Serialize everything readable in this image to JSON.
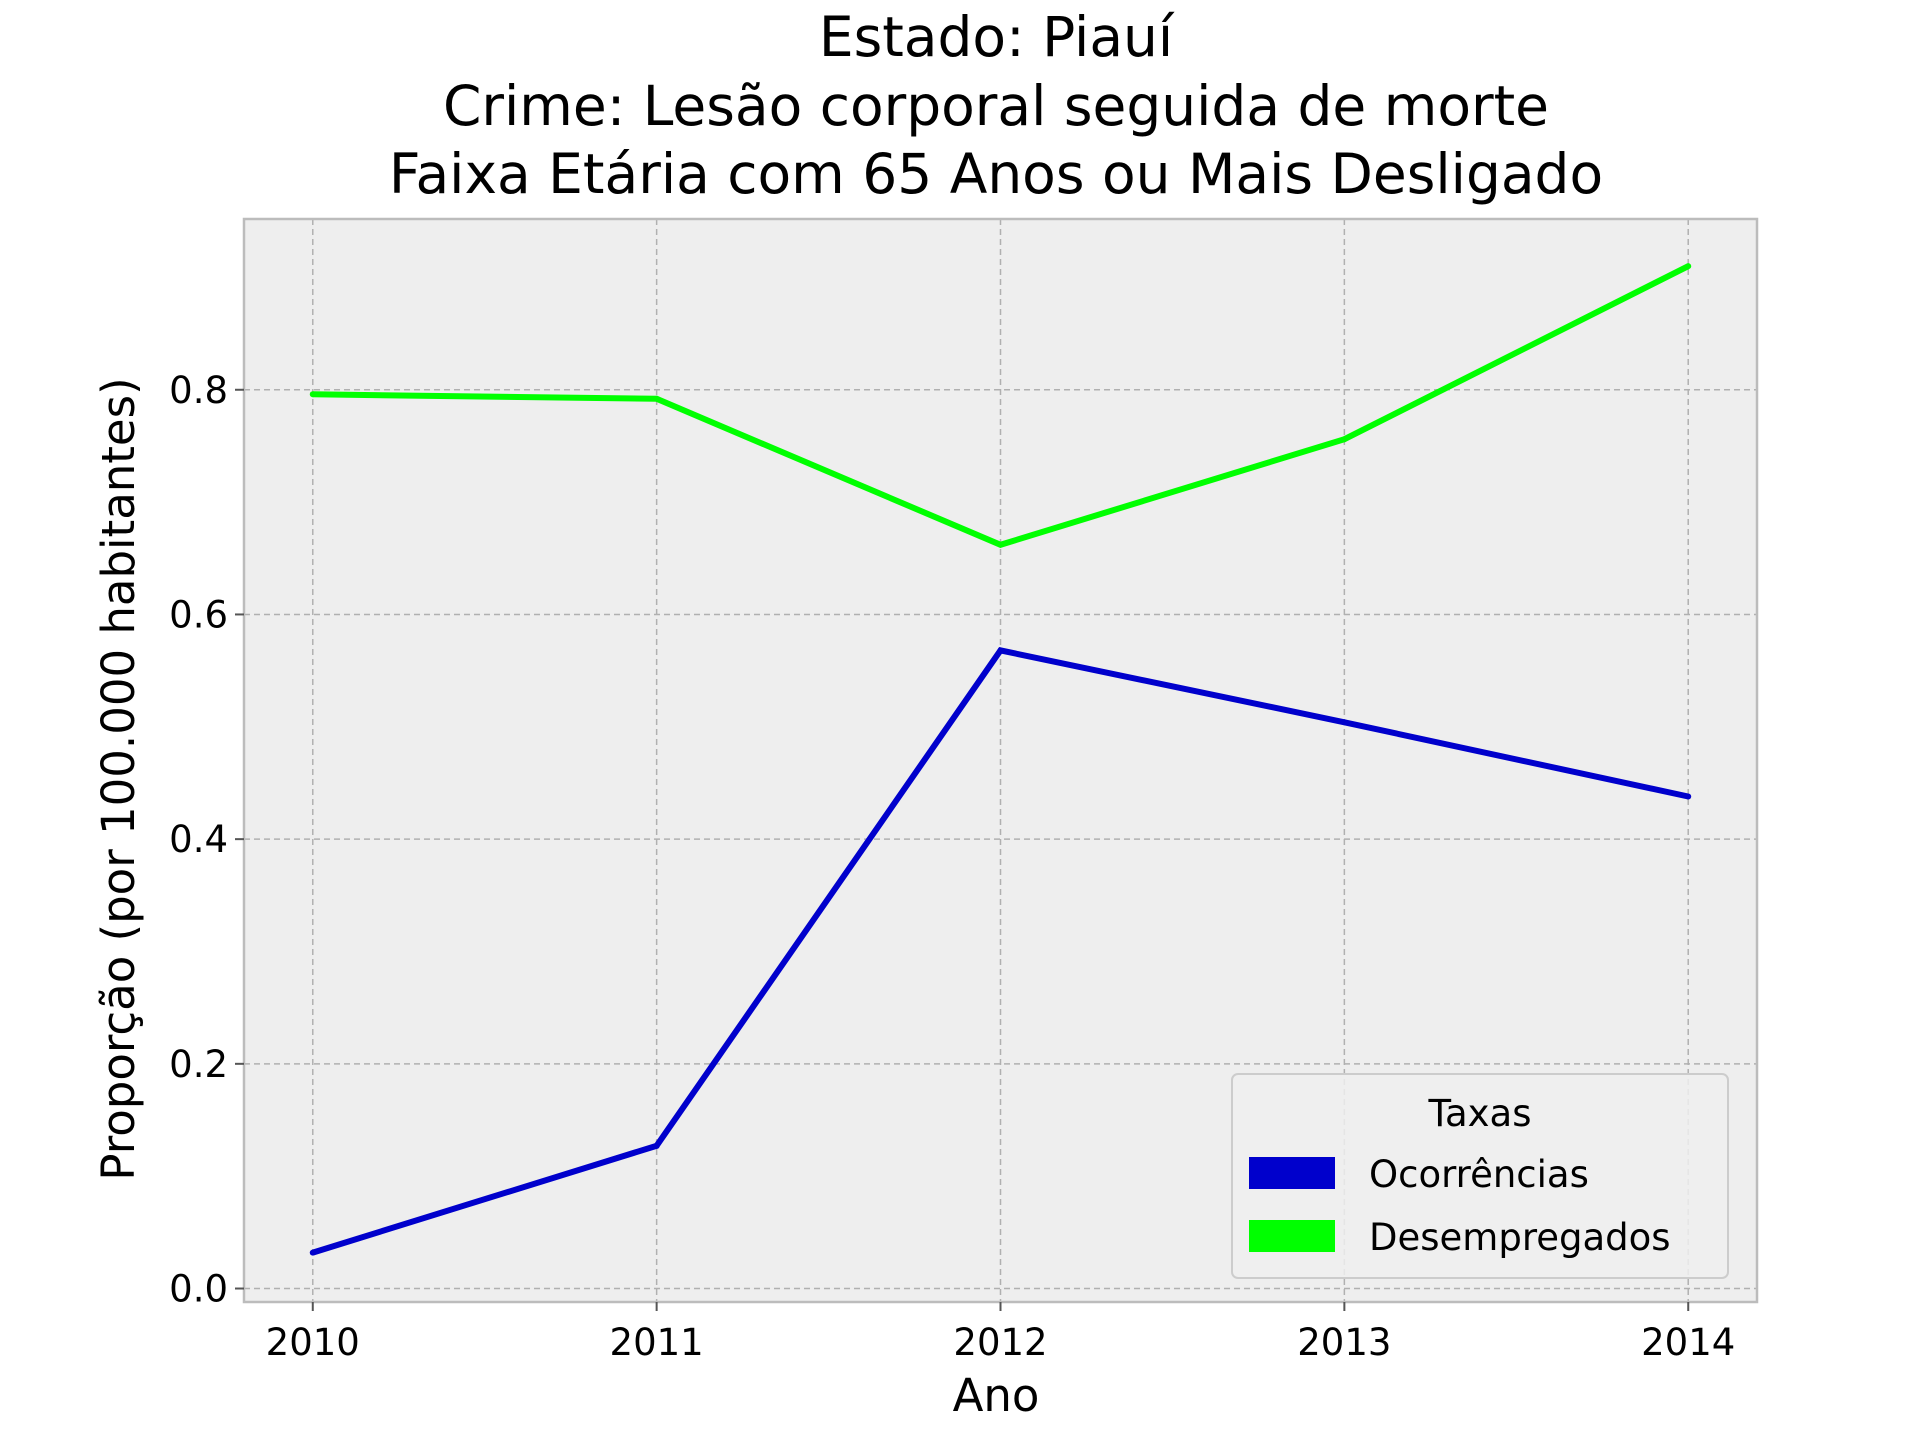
{
  "chart_data": {
    "type": "line",
    "title": [
      "Estado: Piauí",
      "Crime: Lesão corporal seguida de morte",
      "Faixa Etária com 65 Anos ou Mais   Desligado"
    ],
    "xlabel": "Ano",
    "ylabel": "Proporção (por 100.000 habitantes)",
    "x": [
      2010,
      2011,
      2012,
      2013,
      2014
    ],
    "x_tick_labels": [
      "2010",
      "2011",
      "2012",
      "2013",
      "2014"
    ],
    "xlim": [
      2009.8,
      2014.2
    ],
    "y_ticks": [
      0.0,
      0.2,
      0.4,
      0.6,
      0.8
    ],
    "y_tick_labels": [
      "0.0",
      "0.2",
      "0.4",
      "0.6",
      "0.8"
    ],
    "ylim": [
      -0.012,
      0.952
    ],
    "grid": true,
    "legend": {
      "title": "Taxas",
      "placement": "lower-right"
    },
    "series": [
      {
        "name": "Ocorrências",
        "color": "#0000cc",
        "values": [
          0.032,
          0.127,
          0.568,
          0.504,
          0.438
        ]
      },
      {
        "name": "Desempregados",
        "color": "#00ff00",
        "values": [
          0.796,
          0.792,
          0.662,
          0.756,
          0.91
        ]
      }
    ],
    "colors": {
      "plot_background": "#eeeeee",
      "grid": "#b0b0b0",
      "frame": "#bcbcbc"
    }
  }
}
